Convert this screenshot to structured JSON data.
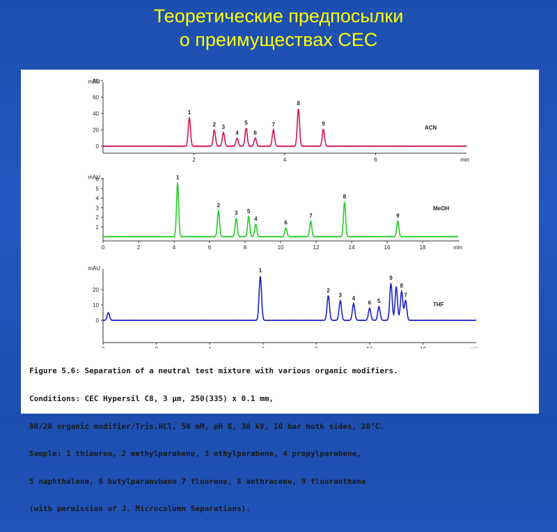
{
  "slide": {
    "title_line1": "Теоретические предпосылки",
    "title_line2": "о преимуществах СЕС"
  },
  "chart_data": [
    {
      "type": "line",
      "label": "ACN",
      "color": "#d0144a",
      "ylabel": "mAU",
      "xlabel": "min",
      "xlim": [
        0,
        8
      ],
      "ylim": [
        -7,
        80
      ],
      "x_ticks": [
        "2",
        "4",
        "6"
      ],
      "y_ticks": [
        "0",
        "20",
        "40",
        "60",
        "80"
      ],
      "peaks": [
        {
          "label": "1",
          "x": 1.9,
          "height": 35
        },
        {
          "label": "2",
          "x": 2.45,
          "height": 20
        },
        {
          "label": "3",
          "x": 2.65,
          "height": 17
        },
        {
          "label": "4",
          "x": 2.95,
          "height": 10
        },
        {
          "label": "5",
          "x": 3.15,
          "height": 22
        },
        {
          "label": "6",
          "x": 3.35,
          "height": 10
        },
        {
          "label": "7",
          "x": 3.75,
          "height": 20
        },
        {
          "label": "8",
          "x": 4.3,
          "height": 46
        },
        {
          "label": "9",
          "x": 4.85,
          "height": 21
        }
      ]
    },
    {
      "type": "line",
      "label": "MeOH",
      "color": "#22cc22",
      "ylabel": "mAU",
      "xlabel": "min",
      "xlim": [
        0,
        20
      ],
      "ylim": [
        -0.6,
        6
      ],
      "x_ticks": [
        "0",
        "2",
        "4",
        "6",
        "8",
        "10",
        "12",
        "14",
        "16",
        "18"
      ],
      "y_ticks": [
        "1",
        "2",
        "3",
        "4",
        "5",
        "6"
      ],
      "peaks": [
        {
          "label": "1",
          "x": 4.2,
          "height": 5.6
        },
        {
          "label": "2",
          "x": 6.5,
          "height": 2.7
        },
        {
          "label": "3",
          "x": 7.5,
          "height": 1.9
        },
        {
          "label": "5",
          "x": 8.2,
          "height": 2.1
        },
        {
          "label": "4",
          "x": 8.6,
          "height": 1.3
        },
        {
          "label": "6",
          "x": 10.3,
          "height": 0.9
        },
        {
          "label": "7",
          "x": 11.7,
          "height": 1.6
        },
        {
          "label": "8",
          "x": 13.6,
          "height": 3.6
        },
        {
          "label": "9",
          "x": 16.6,
          "height": 1.6
        }
      ]
    },
    {
      "type": "line",
      "label": "THF",
      "color": "#1a1fc8",
      "ylabel": "mAU",
      "xlabel": "min",
      "xlim": [
        0,
        14
      ],
      "ylim": [
        -2,
        30
      ],
      "x_ticks": [
        "0",
        "2",
        "4",
        "6",
        "8",
        "10",
        "12"
      ],
      "y_ticks": [
        "0",
        "10",
        "20"
      ],
      "peaks": [
        {
          "label": "",
          "x": 0.2,
          "height": 5
        },
        {
          "label": "1",
          "x": 5.9,
          "height": 29
        },
        {
          "label": "2",
          "x": 8.45,
          "height": 16
        },
        {
          "label": "3",
          "x": 8.9,
          "height": 13
        },
        {
          "label": "4",
          "x": 9.4,
          "height": 11
        },
        {
          "label": "6",
          "x": 10.0,
          "height": 8
        },
        {
          "label": "5",
          "x": 10.35,
          "height": 9
        },
        {
          "label": "9",
          "x": 10.8,
          "height": 24
        },
        {
          "label": "",
          "x": 11.0,
          "height": 22
        },
        {
          "label": "8",
          "x": 11.2,
          "height": 19
        },
        {
          "label": "7",
          "x": 11.35,
          "height": 13
        }
      ]
    }
  ],
  "caption": {
    "line1": "Figure 5.6: Separation of a neutral test mixture with various organic modifiers.",
    "line2": "Conditions: CEC Hypersil C8, 3 µm, 250(335) x 0.1 mm,",
    "line3": "80/20 organic modifier/Tris.HCl, 50 mM, pH 8, 30 kV, 10 bar both sides, 20°C.",
    "line4": "Sample: 1 thiourea, 2 methylparabene, 3 ethylparabene, 4 propylparabene,",
    "line5": "5 naphthalene, 6 butylparanvbene 7 fluorene, 8 anthracene, 9 fluoranthene",
    "line6": "(with permission of J. Microcolumn Separations)."
  }
}
